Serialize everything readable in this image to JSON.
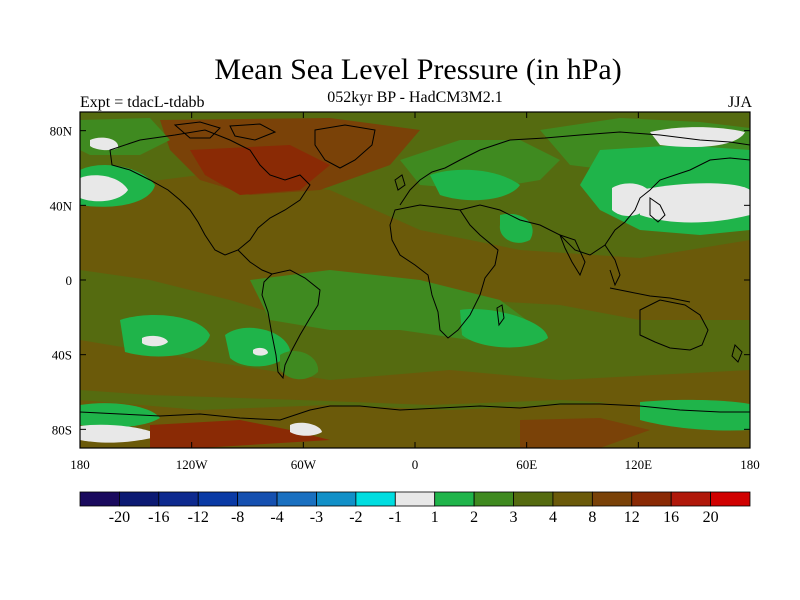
{
  "title": "Mean Sea Level Pressure (in hPa)",
  "subtitle": "052kyr BP - HadCM3M2.1",
  "expt": "Expt = tdacL-tdabb",
  "season": "JJA",
  "map": {
    "lat_ticks": [
      "80N",
      "40N",
      "0",
      "40S",
      "80S"
    ],
    "lat_values": [
      80,
      40,
      0,
      -40,
      -80
    ],
    "lon_ticks": [
      "180",
      "120W",
      "60W",
      "0",
      "60E",
      "120E",
      "180"
    ],
    "lon_values": [
      -180,
      -120,
      -60,
      0,
      60,
      120,
      180
    ],
    "lon_range": [
      -180,
      180
    ],
    "lat_range": [
      -90,
      90
    ]
  },
  "colorbar": {
    "colors": [
      "#1a0a5e",
      "#0c1a73",
      "#0e2a8f",
      "#0a3aa5",
      "#1550b0",
      "#1a70c0",
      "#1190c8",
      "#00dde0",
      "#e8e8e8",
      "#1fb44a",
      "#3f8a20",
      "#556b10",
      "#6b5a0a",
      "#7a4208",
      "#8a2a05",
      "#b0180a",
      "#d00000"
    ],
    "labels": [
      "-20",
      "-16",
      "-12",
      "-8",
      "-4",
      "-3",
      "-2",
      "-1",
      "1",
      "2",
      "3",
      "4",
      "8",
      "12",
      "16",
      "20"
    ]
  }
}
